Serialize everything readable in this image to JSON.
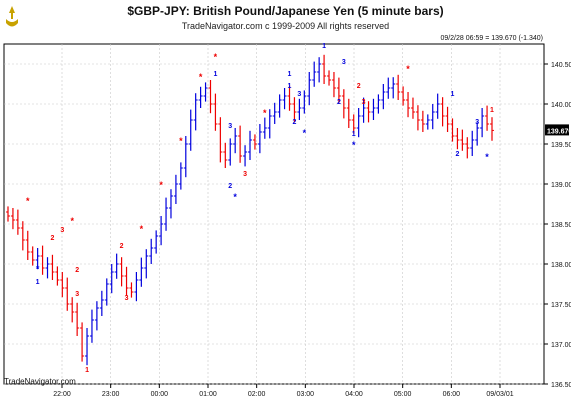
{
  "header": {
    "title": "$GBP-JPY:  British Pound/Japanese Yen  (5 minute bars)",
    "subtitle": "TradeNavigator.com c 1999-2009 All rights reserved",
    "info": "09/2/28 06:59 = 139.670 (-1.340)",
    "footer_brand": "TradeNavigator.com"
  },
  "colors": {
    "up": "#0000dd",
    "down": "#ee0000",
    "grid": "#c8c8c8",
    "axis": "#000000"
  },
  "chart_data": {
    "type": "bar",
    "title": "$GBP-JPY:  British Pound/Japanese Yen  (5 minute bars)",
    "ylim": [
      136.5,
      140.75
    ],
    "y_ticks": [
      "136.500",
      "137.000",
      "137.500",
      "138.000",
      "138.500",
      "139.000",
      "139.500",
      "140.000",
      "140.500"
    ],
    "x_ticks": [
      "22:00",
      "23:00",
      "00:00",
      "01:00",
      "02:00",
      "03:00",
      "04:00",
      "05:00",
      "06:00",
      "09/03/01"
    ],
    "last_price_label": "139.670",
    "ohlc_closes": [
      138.6,
      138.55,
      138.45,
      138.3,
      138.15,
      138.05,
      138.1,
      137.95,
      138.0,
      137.9,
      137.8,
      137.7,
      137.5,
      137.4,
      137.2,
      136.85,
      137.1,
      137.3,
      137.45,
      137.55,
      137.75,
      137.9,
      138.0,
      137.85,
      137.7,
      137.65,
      137.8,
      137.95,
      138.1,
      138.2,
      138.35,
      138.5,
      138.7,
      138.85,
      139.0,
      139.2,
      139.5,
      139.8,
      140.05,
      140.1,
      140.2,
      140.0,
      139.75,
      139.4,
      139.3,
      139.5,
      139.6,
      139.35,
      139.4,
      139.55,
      139.5,
      139.65,
      139.7,
      139.85,
      139.9,
      140.05,
      140.1,
      140.0,
      139.9,
      139.95,
      140.1,
      140.3,
      140.4,
      140.5,
      140.35,
      140.3,
      140.2,
      140.1,
      139.95,
      139.8,
      139.7,
      139.85,
      139.95,
      139.9,
      139.95,
      140.05,
      140.15,
      140.2,
      140.25,
      140.15,
      140.05,
      139.95,
      139.9,
      139.8,
      139.75,
      139.8,
      139.9,
      140.0,
      139.85,
      139.75,
      139.6,
      139.55,
      139.5,
      139.45,
      139.55,
      139.7,
      139.85,
      139.75,
      139.67
    ],
    "labels": [
      {
        "text": "*",
        "i": 4,
        "price": 138.75,
        "color": "down"
      },
      {
        "text": "*",
        "i": 6,
        "price": 137.9,
        "color": "up"
      },
      {
        "text": "1",
        "i": 6,
        "price": 137.75,
        "color": "up"
      },
      {
        "text": "2",
        "i": 9,
        "price": 138.3,
        "color": "down"
      },
      {
        "text": "3",
        "i": 11,
        "price": 138.4,
        "color": "down"
      },
      {
        "text": "*",
        "i": 13,
        "price": 138.5,
        "color": "down"
      },
      {
        "text": "2",
        "i": 14,
        "price": 137.9,
        "color": "down"
      },
      {
        "text": "3",
        "i": 14,
        "price": 137.6,
        "color": "down"
      },
      {
        "text": "1",
        "i": 16,
        "price": 136.65,
        "color": "down"
      },
      {
        "text": "2",
        "i": 23,
        "price": 138.2,
        "color": "down"
      },
      {
        "text": "3",
        "i": 24,
        "price": 137.55,
        "color": "down"
      },
      {
        "text": "*",
        "i": 27,
        "price": 138.4,
        "color": "down"
      },
      {
        "text": "*",
        "i": 31,
        "price": 138.95,
        "color": "down"
      },
      {
        "text": "*",
        "i": 35,
        "price": 139.5,
        "color": "down"
      },
      {
        "text": "*",
        "i": 39,
        "price": 140.3,
        "color": "down"
      },
      {
        "text": "*",
        "i": 42,
        "price": 140.55,
        "color": "down"
      },
      {
        "text": "1",
        "i": 42,
        "price": 140.35,
        "color": "up"
      },
      {
        "text": "3",
        "i": 45,
        "price": 139.7,
        "color": "up"
      },
      {
        "text": "2",
        "i": 45,
        "price": 138.95,
        "color": "up"
      },
      {
        "text": "*",
        "i": 46,
        "price": 138.8,
        "color": "up"
      },
      {
        "text": "3",
        "i": 48,
        "price": 139.1,
        "color": "down"
      },
      {
        "text": "*",
        "i": 52,
        "price": 139.85,
        "color": "down"
      },
      {
        "text": "1",
        "i": 57,
        "price": 140.35,
        "color": "up"
      },
      {
        "text": "1",
        "i": 57,
        "price": 140.2,
        "color": "up"
      },
      {
        "text": "3",
        "i": 59,
        "price": 140.1,
        "color": "up"
      },
      {
        "text": "2",
        "i": 58,
        "price": 139.75,
        "color": "up"
      },
      {
        "text": "*",
        "i": 60,
        "price": 139.6,
        "color": "up"
      },
      {
        "text": "1",
        "i": 64,
        "price": 140.7,
        "color": "up"
      },
      {
        "text": "3",
        "i": 68,
        "price": 140.5,
        "color": "up"
      },
      {
        "text": "2",
        "i": 71,
        "price": 140.2,
        "color": "down"
      },
      {
        "text": "2",
        "i": 67,
        "price": 140.0,
        "color": "up"
      },
      {
        "text": "1",
        "i": 70,
        "price": 139.6,
        "color": "up"
      },
      {
        "text": "*",
        "i": 70,
        "price": 139.45,
        "color": "up"
      },
      {
        "text": "3",
        "i": 72,
        "price": 140.0,
        "color": "down"
      },
      {
        "text": "*",
        "i": 81,
        "price": 140.4,
        "color": "down"
      },
      {
        "text": "1",
        "i": 90,
        "price": 140.1,
        "color": "up"
      },
      {
        "text": "3",
        "i": 95,
        "price": 139.75,
        "color": "up"
      },
      {
        "text": "2",
        "i": 91,
        "price": 139.35,
        "color": "up"
      },
      {
        "text": "*",
        "i": 97,
        "price": 139.3,
        "color": "up"
      },
      {
        "text": "1",
        "i": 98,
        "price": 139.9,
        "color": "down"
      }
    ]
  }
}
